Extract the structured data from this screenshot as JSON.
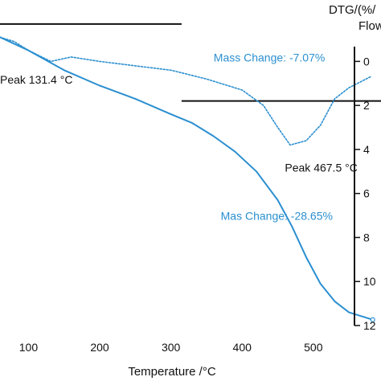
{
  "chart_data": {
    "type": "line",
    "xlabel": "Temperature /°C",
    "ylabel_right": "DTG/(%/",
    "ylabel_right_second_line": "Flow",
    "x_ticks": [
      "100",
      "200",
      "300",
      "400",
      "500"
    ],
    "y_right_ticks": [
      "0",
      "2",
      "4",
      "6",
      "8",
      "10",
      "12"
    ],
    "xlim": [
      60,
      595
    ],
    "y_right_lim": [
      -1,
      12
    ],
    "y_right_inverted": true,
    "series": [
      {
        "name": "",
        "role": "TG",
        "color": "#2b8fd0",
        "style": "solid",
        "x": [
          60,
          100,
          150,
          200,
          250,
          300,
          330,
          360,
          390,
          420,
          450,
          470,
          490,
          510,
          530,
          550,
          580
        ],
        "y": [
          -1.1,
          -0.5,
          0.4,
          1.1,
          1.7,
          2.4,
          2.8,
          3.4,
          4.1,
          5.0,
          6.3,
          7.5,
          8.9,
          10.1,
          10.9,
          11.4,
          11.7
        ]
      },
      {
        "name": "",
        "role": "DTG",
        "color": "#2b8fd0",
        "style": "dotted",
        "x": [
          60,
          80,
          100,
          131.4,
          160,
          200,
          250,
          300,
          350,
          400,
          430,
          450,
          467.5,
          490,
          510,
          530,
          550,
          580
        ],
        "y": [
          -1.1,
          -0.9,
          -0.5,
          0.0,
          -0.2,
          0.0,
          0.2,
          0.4,
          0.8,
          1.3,
          2.0,
          3.0,
          3.8,
          3.6,
          2.9,
          1.7,
          1.2,
          0.7
        ]
      }
    ],
    "reference_lines": [
      {
        "x_start": 60,
        "x_end": 315,
        "y": -1.7
      },
      {
        "x_start": 315,
        "x_end": 595,
        "y": 1.8
      }
    ],
    "annotations": [
      {
        "text": "Peak 131.4 °C",
        "x": 60,
        "y": 1.0,
        "color": "#111111"
      },
      {
        "text": "Mass Change: -7.07%",
        "x": 360,
        "y": 0.0,
        "color": "#2b8fd0"
      },
      {
        "text": "Peak 467.5 °C",
        "x": 460,
        "y": 5.0,
        "color": "#111111"
      },
      {
        "text": "Mas Change: -28.65%",
        "x": 370,
        "y": 7.2,
        "color": "#2b8fd0"
      }
    ],
    "grid": false,
    "legend": "none"
  }
}
